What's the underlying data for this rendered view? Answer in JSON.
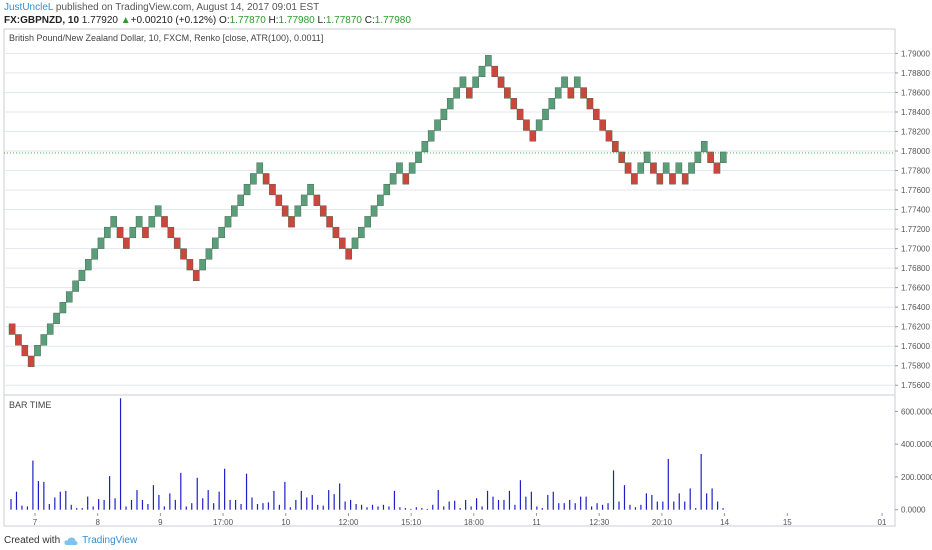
{
  "header": {
    "author": "JustUncleL",
    "published_text": "published on TradingView.com, August 14, 2017 09:01 EST",
    "symbol": "FX:GBPNZD, 10",
    "last": "1.77920",
    "arrow": "▲",
    "change": "+0.00210 (+0.12%)",
    "o_label": "O:",
    "o_value": "1.77870",
    "h_label": "H:",
    "h_value": "1.77980",
    "l_label": "L:",
    "l_value": "1.77870",
    "c_label": "C:",
    "c_value": "1.77980"
  },
  "footer": {
    "created_with": "Created with",
    "brand": "TradingView",
    "logo_icon": "tradingview-cloud-icon"
  },
  "colors": {
    "up": "#5a9e79",
    "down": "#c9473b",
    "volume": "#1e1ec8",
    "grid": "#e3e7ee",
    "price_line": "#4caf50"
  },
  "chart_data": [
    {
      "type": "renko",
      "title": "British Pound/New Zealand Dollar, 10, FXCM, Renko [close, ATR(100), 0.0011]",
      "ylim": [
        1.755,
        1.7925
      ],
      "y_ticks": [
        "1.79000",
        "1.78800",
        "1.78600",
        "1.78400",
        "1.78200",
        "1.78000",
        "1.77800",
        "1.77600",
        "1.77400",
        "1.77200",
        "1.77000",
        "1.76800",
        "1.76600",
        "1.76400",
        "1.76200",
        "1.76000",
        "1.75800",
        "1.75600"
      ],
      "x_tick_labels": [
        "7",
        "8",
        "9",
        "17:00",
        "10",
        "12:00",
        "15:10",
        "18:00",
        "11",
        "12:30",
        "20:10",
        "14",
        "15",
        "01"
      ],
      "current_price": 1.7798,
      "brick_size": 0.0011,
      "bricks": [
        {
          "dir": "down",
          "open": 1.7623,
          "close": 1.7612
        },
        {
          "dir": "down",
          "open": 1.7612,
          "close": 1.7601
        },
        {
          "dir": "down",
          "open": 1.7601,
          "close": 1.759
        },
        {
          "dir": "down",
          "open": 1.759,
          "close": 1.7579
        },
        {
          "dir": "up",
          "open": 1.759,
          "close": 1.7601
        },
        {
          "dir": "up",
          "open": 1.7601,
          "close": 1.7612
        },
        {
          "dir": "up",
          "open": 1.7612,
          "close": 1.7623
        },
        {
          "dir": "up",
          "open": 1.7623,
          "close": 1.7634
        },
        {
          "dir": "up",
          "open": 1.7634,
          "close": 1.7645
        },
        {
          "dir": "up",
          "open": 1.7645,
          "close": 1.7656
        },
        {
          "dir": "up",
          "open": 1.7656,
          "close": 1.7667
        },
        {
          "dir": "up",
          "open": 1.7667,
          "close": 1.7678
        },
        {
          "dir": "up",
          "open": 1.7678,
          "close": 1.7689
        },
        {
          "dir": "up",
          "open": 1.7689,
          "close": 1.77
        },
        {
          "dir": "up",
          "open": 1.77,
          "close": 1.7711
        },
        {
          "dir": "up",
          "open": 1.7711,
          "close": 1.7722
        },
        {
          "dir": "up",
          "open": 1.7722,
          "close": 1.7733
        },
        {
          "dir": "down",
          "open": 1.7722,
          "close": 1.7711
        },
        {
          "dir": "down",
          "open": 1.7711,
          "close": 1.77
        },
        {
          "dir": "up",
          "open": 1.7711,
          "close": 1.7722
        },
        {
          "dir": "up",
          "open": 1.7722,
          "close": 1.7733
        },
        {
          "dir": "down",
          "open": 1.7722,
          "close": 1.7711
        },
        {
          "dir": "up",
          "open": 1.7722,
          "close": 1.7733
        },
        {
          "dir": "up",
          "open": 1.7733,
          "close": 1.7744
        },
        {
          "dir": "down",
          "open": 1.7733,
          "close": 1.7722
        },
        {
          "dir": "down",
          "open": 1.7722,
          "close": 1.7711
        },
        {
          "dir": "down",
          "open": 1.7711,
          "close": 1.77
        },
        {
          "dir": "down",
          "open": 1.77,
          "close": 1.7689
        },
        {
          "dir": "down",
          "open": 1.7689,
          "close": 1.7678
        },
        {
          "dir": "down",
          "open": 1.7678,
          "close": 1.7667
        },
        {
          "dir": "up",
          "open": 1.7678,
          "close": 1.7689
        },
        {
          "dir": "up",
          "open": 1.7689,
          "close": 1.77
        },
        {
          "dir": "up",
          "open": 1.77,
          "close": 1.7711
        },
        {
          "dir": "up",
          "open": 1.7711,
          "close": 1.7722
        },
        {
          "dir": "up",
          "open": 1.7722,
          "close": 1.7733
        },
        {
          "dir": "up",
          "open": 1.7733,
          "close": 1.7744
        },
        {
          "dir": "up",
          "open": 1.7744,
          "close": 1.7755
        },
        {
          "dir": "up",
          "open": 1.7755,
          "close": 1.7766
        },
        {
          "dir": "up",
          "open": 1.7766,
          "close": 1.7777
        },
        {
          "dir": "up",
          "open": 1.7777,
          "close": 1.7788
        },
        {
          "dir": "down",
          "open": 1.7777,
          "close": 1.7766
        },
        {
          "dir": "down",
          "open": 1.7766,
          "close": 1.7755
        },
        {
          "dir": "down",
          "open": 1.7755,
          "close": 1.7744
        },
        {
          "dir": "down",
          "open": 1.7744,
          "close": 1.7733
        },
        {
          "dir": "down",
          "open": 1.7733,
          "close": 1.7722
        },
        {
          "dir": "up",
          "open": 1.7733,
          "close": 1.7744
        },
        {
          "dir": "up",
          "open": 1.7744,
          "close": 1.7755
        },
        {
          "dir": "up",
          "open": 1.7755,
          "close": 1.7766
        },
        {
          "dir": "down",
          "open": 1.7755,
          "close": 1.7744
        },
        {
          "dir": "down",
          "open": 1.7744,
          "close": 1.7733
        },
        {
          "dir": "down",
          "open": 1.7733,
          "close": 1.7722
        },
        {
          "dir": "down",
          "open": 1.7722,
          "close": 1.7711
        },
        {
          "dir": "down",
          "open": 1.7711,
          "close": 1.77
        },
        {
          "dir": "down",
          "open": 1.77,
          "close": 1.7689
        },
        {
          "dir": "up",
          "open": 1.77,
          "close": 1.7711
        },
        {
          "dir": "up",
          "open": 1.7711,
          "close": 1.7722
        },
        {
          "dir": "up",
          "open": 1.7722,
          "close": 1.7733
        },
        {
          "dir": "up",
          "open": 1.7733,
          "close": 1.7744
        },
        {
          "dir": "up",
          "open": 1.7744,
          "close": 1.7755
        },
        {
          "dir": "up",
          "open": 1.7755,
          "close": 1.7766
        },
        {
          "dir": "up",
          "open": 1.7766,
          "close": 1.7777
        },
        {
          "dir": "up",
          "open": 1.7777,
          "close": 1.7788
        },
        {
          "dir": "down",
          "open": 1.7777,
          "close": 1.7766
        },
        {
          "dir": "up",
          "open": 1.7777,
          "close": 1.7788
        },
        {
          "dir": "up",
          "open": 1.7788,
          "close": 1.7799
        },
        {
          "dir": "up",
          "open": 1.7799,
          "close": 1.781
        },
        {
          "dir": "up",
          "open": 1.781,
          "close": 1.7821
        },
        {
          "dir": "up",
          "open": 1.7821,
          "close": 1.7832
        },
        {
          "dir": "up",
          "open": 1.7832,
          "close": 1.7843
        },
        {
          "dir": "up",
          "open": 1.7843,
          "close": 1.7854
        },
        {
          "dir": "up",
          "open": 1.7854,
          "close": 1.7865
        },
        {
          "dir": "up",
          "open": 1.7865,
          "close": 1.7876
        },
        {
          "dir": "down",
          "open": 1.7865,
          "close": 1.7854
        },
        {
          "dir": "up",
          "open": 1.7865,
          "close": 1.7876
        },
        {
          "dir": "up",
          "open": 1.7876,
          "close": 1.7887
        },
        {
          "dir": "up",
          "open": 1.7887,
          "close": 1.7898
        },
        {
          "dir": "down",
          "open": 1.7887,
          "close": 1.7876
        },
        {
          "dir": "down",
          "open": 1.7876,
          "close": 1.7865
        },
        {
          "dir": "down",
          "open": 1.7865,
          "close": 1.7854
        },
        {
          "dir": "down",
          "open": 1.7854,
          "close": 1.7843
        },
        {
          "dir": "down",
          "open": 1.7843,
          "close": 1.7832
        },
        {
          "dir": "down",
          "open": 1.7832,
          "close": 1.7821
        },
        {
          "dir": "down",
          "open": 1.7821,
          "close": 1.781
        },
        {
          "dir": "up",
          "open": 1.7821,
          "close": 1.7832
        },
        {
          "dir": "up",
          "open": 1.7832,
          "close": 1.7843
        },
        {
          "dir": "up",
          "open": 1.7843,
          "close": 1.7854
        },
        {
          "dir": "up",
          "open": 1.7854,
          "close": 1.7865
        },
        {
          "dir": "up",
          "open": 1.7865,
          "close": 1.7876
        },
        {
          "dir": "down",
          "open": 1.7865,
          "close": 1.7854
        },
        {
          "dir": "up",
          "open": 1.7865,
          "close": 1.7876
        },
        {
          "dir": "down",
          "open": 1.7865,
          "close": 1.7854
        },
        {
          "dir": "down",
          "open": 1.7854,
          "close": 1.7843
        },
        {
          "dir": "down",
          "open": 1.7843,
          "close": 1.7832
        },
        {
          "dir": "down",
          "open": 1.7832,
          "close": 1.7821
        },
        {
          "dir": "down",
          "open": 1.7821,
          "close": 1.781
        },
        {
          "dir": "down",
          "open": 1.781,
          "close": 1.7799
        },
        {
          "dir": "down",
          "open": 1.7799,
          "close": 1.7788
        },
        {
          "dir": "down",
          "open": 1.7788,
          "close": 1.7777
        },
        {
          "dir": "down",
          "open": 1.7777,
          "close": 1.7766
        },
        {
          "dir": "up",
          "open": 1.7777,
          "close": 1.7788
        },
        {
          "dir": "up",
          "open": 1.7788,
          "close": 1.7799
        },
        {
          "dir": "down",
          "open": 1.7788,
          "close": 1.7777
        },
        {
          "dir": "down",
          "open": 1.7777,
          "close": 1.7766
        },
        {
          "dir": "up",
          "open": 1.7777,
          "close": 1.7788
        },
        {
          "dir": "down",
          "open": 1.7777,
          "close": 1.7766
        },
        {
          "dir": "up",
          "open": 1.7777,
          "close": 1.7788
        },
        {
          "dir": "down",
          "open": 1.7777,
          "close": 1.7766
        },
        {
          "dir": "up",
          "open": 1.7777,
          "close": 1.7788
        },
        {
          "dir": "up",
          "open": 1.7788,
          "close": 1.7799
        },
        {
          "dir": "up",
          "open": 1.7799,
          "close": 1.781
        },
        {
          "dir": "down",
          "open": 1.7799,
          "close": 1.7788
        },
        {
          "dir": "down",
          "open": 1.7788,
          "close": 1.7777
        },
        {
          "dir": "up",
          "open": 1.7788,
          "close": 1.7799
        }
      ]
    },
    {
      "type": "bar",
      "title": "BAR TIME",
      "ylim": [
        -20000,
        700000
      ],
      "y_ticks": [
        "600.0000",
        "400.0000",
        "200.0000",
        "0.0000"
      ],
      "values": [
        65000,
        110000,
        25000,
        20000,
        300000,
        175000,
        170000,
        35000,
        75000,
        110000,
        115000,
        30000,
        10000,
        10000,
        80000,
        20000,
        65000,
        60000,
        205000,
        70000,
        680000,
        20000,
        60000,
        120000,
        60000,
        35000,
        150000,
        90000,
        20000,
        100000,
        60000,
        225000,
        20000,
        40000,
        195000,
        70000,
        120000,
        40000,
        110000,
        250000,
        60000,
        60000,
        35000,
        220000,
        75000,
        35000,
        40000,
        45000,
        115000,
        30000,
        170000,
        15000,
        60000,
        115000,
        75000,
        90000,
        30000,
        25000,
        120000,
        95000,
        160000,
        50000,
        60000,
        35000,
        30000,
        15000,
        30000,
        20000,
        30000,
        20000,
        115000,
        15000,
        10000,
        5000,
        15000,
        10000,
        5000,
        30000,
        120000,
        20000,
        50000,
        55000,
        10000,
        60000,
        20000,
        70000,
        20000,
        115000,
        80000,
        60000,
        60000,
        115000,
        30000,
        180000,
        80000,
        110000,
        20000,
        10000,
        90000,
        110000,
        40000,
        40000,
        60000,
        40000,
        80000,
        80000,
        20000,
        40000,
        30000,
        40000,
        240000,
        50000,
        150000,
        30000,
        15000,
        30000,
        100000,
        90000,
        50000,
        50000,
        310000,
        50000,
        100000,
        50000,
        130000,
        10000,
        340000,
        100000,
        130000,
        50000,
        10000
      ]
    }
  ]
}
